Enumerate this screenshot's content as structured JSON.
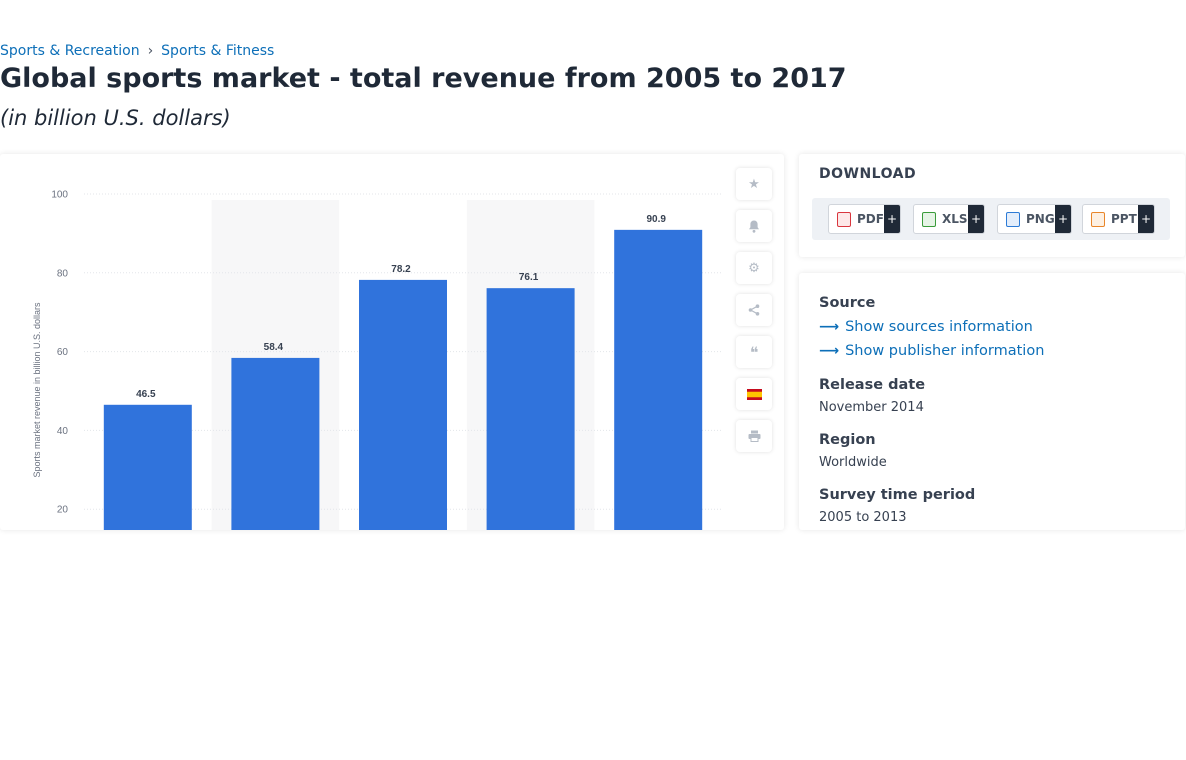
{
  "breadcrumb": [
    "Sports & Recreation",
    "Sports & Fitness"
  ],
  "breadcrumb_separator": "›",
  "title": "Global sports market - total revenue from 2005 to 2017",
  "subtitle": "(in billion U.S. dollars)",
  "chart_data": {
    "type": "bar",
    "categories": [
      "",
      "",
      "",
      "",
      ""
    ],
    "values": [
      46.5,
      58.4,
      78.2,
      76.1,
      90.9
    ],
    "data_labels": [
      "46.5",
      "58.4",
      "78.2",
      "76.1",
      "90.9"
    ],
    "ylabel": "Sports market revenue in billion U.S. dollars",
    "yticks": [
      20,
      40,
      60,
      80,
      100
    ],
    "ylim": [
      0,
      100
    ],
    "grid": true,
    "bar_color": "#3073dc"
  },
  "tools": [
    {
      "icon": "star-icon",
      "glyph": "★"
    },
    {
      "icon": "bell-icon",
      "glyph": "🔔"
    },
    {
      "icon": "gear-icon",
      "glyph": "⚙"
    },
    {
      "icon": "share-icon",
      "glyph": "⤳"
    },
    {
      "icon": "quote-icon",
      "glyph": "❝"
    },
    {
      "icon": "spain-flag-icon",
      "glyph": ""
    },
    {
      "icon": "print-icon",
      "glyph": "⎙"
    }
  ],
  "download": {
    "title": "DOWNLOAD",
    "formats": [
      {
        "label": "PDF",
        "plus": "+",
        "color": "#d9363e"
      },
      {
        "label": "XLS",
        "plus": "+",
        "color": "#3a9b3a"
      },
      {
        "label": "PNG",
        "plus": "+",
        "color": "#2d7bd6"
      },
      {
        "label": "PPT",
        "plus": "+",
        "color": "#e8862a"
      }
    ]
  },
  "info": {
    "source_label": "Source",
    "show_sources": "Show sources information",
    "show_publisher": "Show publisher information",
    "release_label": "Release date",
    "release_value": "November 2014",
    "region_label": "Region",
    "region_value": "Worldwide",
    "survey_label": "Survey time period",
    "survey_value": "2005 to 2013"
  }
}
